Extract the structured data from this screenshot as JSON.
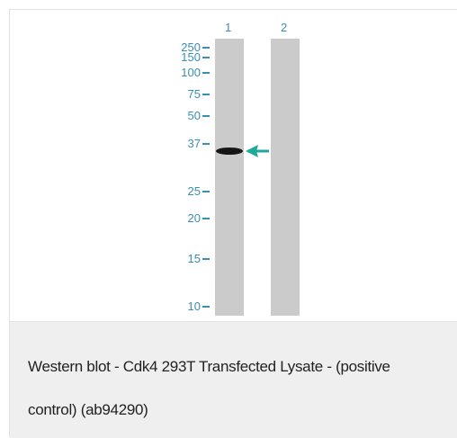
{
  "blot": {
    "lanes": [
      "1",
      "2"
    ],
    "markers": [
      "250",
      "150",
      "100",
      "75",
      "50",
      "37",
      "25",
      "20",
      "15",
      "10"
    ]
  },
  "caption": "Western blot - Cdk4 293T Transfected Lysate - (positive control) (ab94290)"
}
